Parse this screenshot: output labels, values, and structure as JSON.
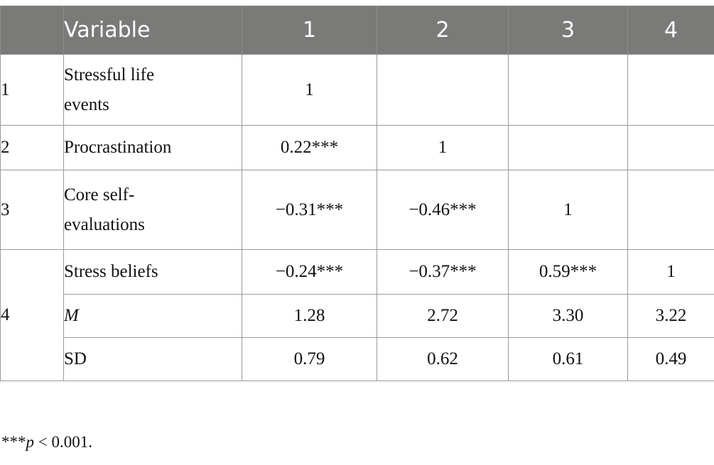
{
  "table": {
    "headers": [
      "",
      "Variable",
      "1",
      "2",
      "3",
      "4"
    ],
    "rows": [
      {
        "index": "1",
        "variable": "Stressful life events",
        "values": [
          "1",
          "",
          "",
          ""
        ]
      },
      {
        "index": "2",
        "variable": "Procrastination",
        "values": [
          "0.22***",
          "1",
          "",
          ""
        ]
      },
      {
        "index": "3",
        "variable": "Core self-evaluations",
        "values": [
          "−0.31***",
          "−0.46***",
          "1",
          ""
        ]
      },
      {
        "index": "4",
        "variable": "Stress beliefs",
        "values": [
          "−0.24***",
          "−0.37***",
          "0.59***",
          "1"
        ]
      },
      {
        "index": "",
        "variable": "M",
        "values": [
          "1.28",
          "2.72",
          "3.30",
          "3.22"
        ]
      },
      {
        "index": "",
        "variable": "SD",
        "values": [
          "0.79",
          "0.62",
          "0.61",
          "0.49"
        ]
      }
    ]
  },
  "footnote": {
    "stars": "***",
    "p": "p",
    "rest": " < 0.001."
  },
  "colors": {
    "header_bg": "#7a7a78",
    "header_text": "#ffffff",
    "border": "#9a9a9a"
  }
}
